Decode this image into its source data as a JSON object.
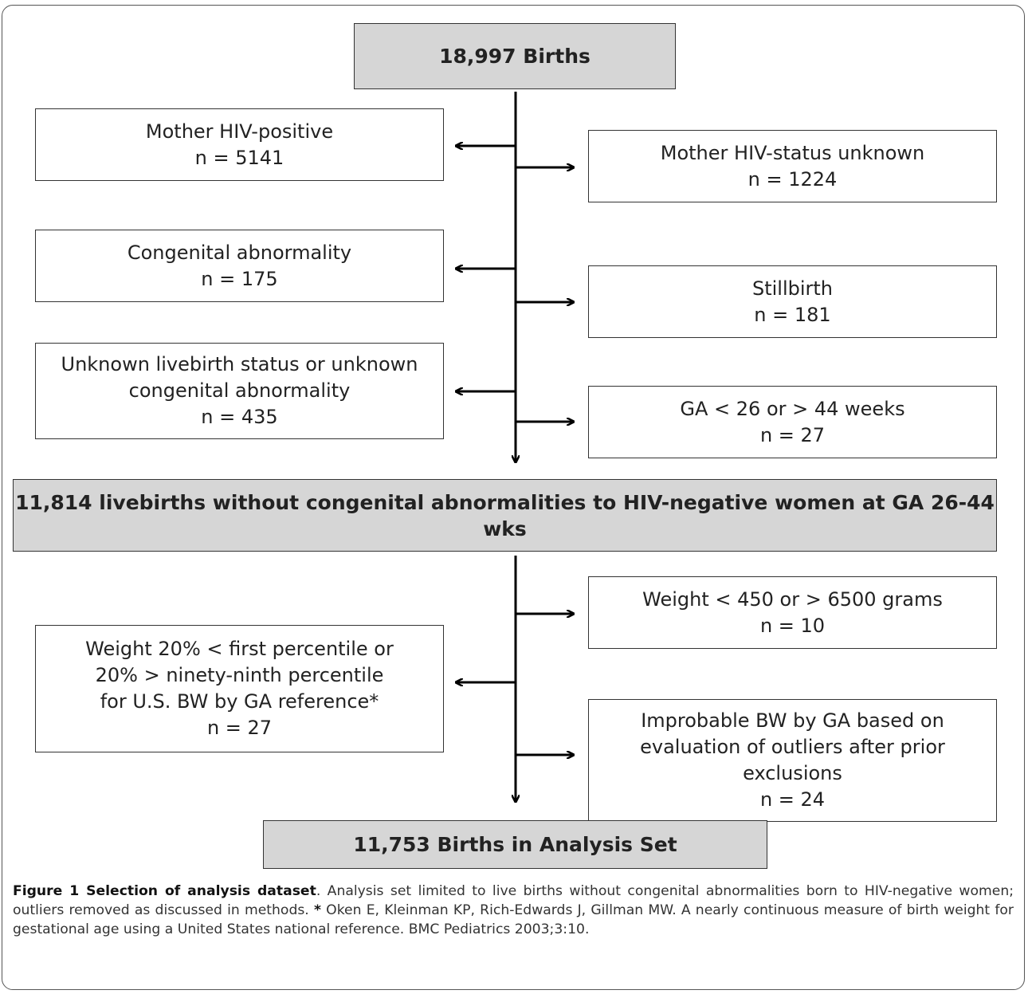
{
  "flow": {
    "top": "18,997 Births",
    "ex_hiv_pos": [
      "Mother HIV-positive",
      "n = 5141"
    ],
    "ex_hiv_unknown": [
      "Mother HIV-status unknown",
      "n = 1224"
    ],
    "ex_congenital": [
      "Congenital abnormality",
      "n = 175"
    ],
    "ex_stillbirth": [
      "Stillbirth",
      "n = 181"
    ],
    "ex_unknown_live": [
      "Unknown livebirth status or unknown",
      "congenital abnormality",
      "n = 435"
    ],
    "ex_ga": [
      "GA < 26 or > 44 weeks",
      "n = 27"
    ],
    "middle": "11,814 livebirths without congenital abnormalities to HIV-negative women at GA 26-44 wks",
    "ex_weight": [
      "Weight < 450 or > 6500 grams",
      "n = 10"
    ],
    "ex_percentile": [
      "Weight 20% < first percentile or",
      "20% > ninety-ninth percentile",
      "for U.S. BW by GA reference*",
      "n = 27"
    ],
    "ex_improbable": [
      "Improbable BW by GA based on",
      "evaluation of outliers after prior",
      "exclusions",
      "n = 24"
    ],
    "bottom": "11,753 Births in Analysis Set"
  },
  "caption": {
    "label": "Figure 1 Selection of analysis dataset",
    "text1": ". Analysis set limited to live births without congenital abnormalities born to HIV-negative women; outliers removed as discussed in methods.  ",
    "star": "*",
    "text2": " Oken E, Kleinman KP, Rich-Edwards J, Gillman MW. A nearly continuous measure of birth weight for gestational age using a United States national reference. BMC Pediatrics 2003;3:10."
  }
}
